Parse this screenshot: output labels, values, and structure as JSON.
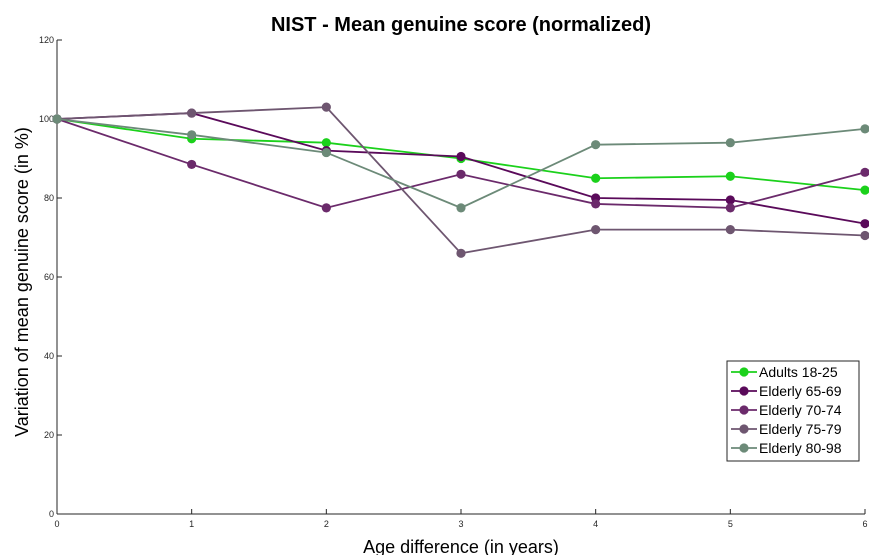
{
  "chart_data": {
    "type": "line",
    "title": "NIST - Mean genuine score (normalized)",
    "xlabel": "Age difference (in years)",
    "ylabel": "Variation of mean genuine score (in %)",
    "x": [
      0,
      1,
      2,
      3,
      4,
      5,
      6
    ],
    "xlim": [
      0,
      6
    ],
    "ylim": [
      0,
      120
    ],
    "xticks": [
      "0",
      "1",
      "2",
      "3",
      "4",
      "5",
      "6"
    ],
    "yticks": [
      "0",
      "20",
      "40",
      "60",
      "80",
      "100",
      "120"
    ],
    "grid": false,
    "legend_position": "bottom-right",
    "series": [
      {
        "name": "Adults 18-25",
        "color": "#1bd11b",
        "values": [
          100,
          95,
          94,
          90,
          85,
          85.5,
          82
        ]
      },
      {
        "name": "Elderly 65-69",
        "color": "#5a0a5a",
        "values": [
          100,
          101.5,
          92,
          90.5,
          80,
          79.5,
          73.5
        ]
      },
      {
        "name": "Elderly 70-74",
        "color": "#6b2a6b",
        "values": [
          100,
          88.5,
          77.5,
          86,
          78.5,
          77.5,
          86.5
        ]
      },
      {
        "name": "Elderly 75-79",
        "color": "#6e5670",
        "values": [
          100,
          101.5,
          103,
          66,
          72,
          72,
          70.5
        ]
      },
      {
        "name": "Elderly 80-98",
        "color": "#6c8a78",
        "values": [
          100,
          96,
          91.5,
          77.5,
          93.5,
          94,
          97.5
        ]
      }
    ]
  }
}
